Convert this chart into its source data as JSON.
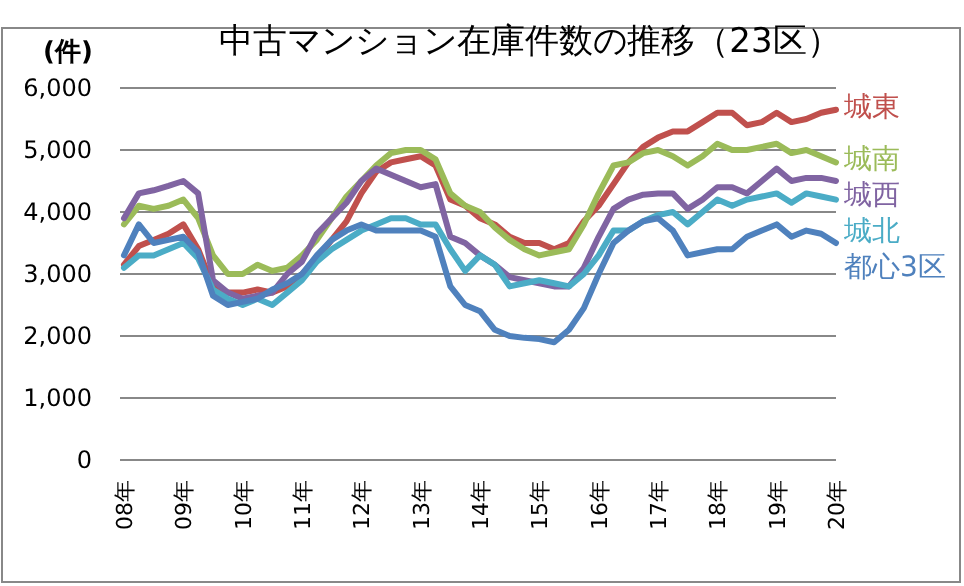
{
  "chart_data": {
    "type": "line",
    "title": "中古マンション在庫件数の推移（23区）",
    "ylabel": "(件)",
    "categories": [
      "08年",
      null,
      null,
      null,
      "09年",
      null,
      null,
      null,
      "10年",
      null,
      null,
      null,
      "11年",
      null,
      null,
      null,
      "12年",
      null,
      null,
      null,
      "13年",
      null,
      null,
      null,
      "14年",
      null,
      null,
      null,
      "15年",
      null,
      null,
      null,
      "16年",
      null,
      null,
      null,
      "17年",
      null,
      null,
      null,
      "18年",
      null,
      null,
      null,
      "19年",
      null,
      null,
      null,
      "20年"
    ],
    "series": [
      {
        "name": "城東",
        "color": "#c0504d",
        "values": [
          3150,
          3450,
          3550,
          3650,
          3800,
          3400,
          2800,
          2700,
          2700,
          2750,
          2700,
          2800,
          3000,
          3250,
          3550,
          3850,
          4300,
          4650,
          4800,
          4850,
          4900,
          4750,
          4200,
          4100,
          3900,
          3800,
          3600,
          3500,
          3500,
          3400,
          3500,
          3850,
          4100,
          4450,
          4800,
          5050,
          5200,
          5300,
          5300,
          5450,
          5600,
          5600,
          5400,
          5450,
          5600,
          5450,
          5500,
          5600,
          5650
        ]
      },
      {
        "name": "城南",
        "color": "#9bbb59",
        "values": [
          3800,
          4100,
          4050,
          4100,
          4200,
          3900,
          3300,
          3000,
          3000,
          3150,
          3050,
          3100,
          3300,
          3550,
          3900,
          4250,
          4500,
          4750,
          4950,
          5000,
          5000,
          4850,
          4300,
          4100,
          4000,
          3750,
          3550,
          3400,
          3300,
          3350,
          3400,
          3800,
          4300,
          4750,
          4800,
          4950,
          5000,
          4900,
          4750,
          4900,
          5100,
          5000,
          5000,
          5050,
          5100,
          4950,
          5000,
          4900,
          4800
        ]
      },
      {
        "name": "城西",
        "color": "#8064a2",
        "values": [
          3900,
          4300,
          4350,
          4420,
          4500,
          4300,
          2900,
          2700,
          2600,
          2650,
          2700,
          3000,
          3200,
          3650,
          3900,
          4150,
          4500,
          4700,
          4600,
          4500,
          4400,
          4450,
          3600,
          3500,
          3300,
          3150,
          2950,
          2900,
          2850,
          2800,
          2800,
          3100,
          3600,
          4050,
          4200,
          4280,
          4300,
          4300,
          4050,
          4200,
          4400,
          4400,
          4300,
          4500,
          4700,
          4500,
          4550,
          4550,
          4500
        ]
      },
      {
        "name": "城北",
        "color": "#4bacc6",
        "values": [
          3100,
          3300,
          3300,
          3400,
          3500,
          3250,
          2750,
          2600,
          2500,
          2600,
          2500,
          2700,
          2900,
          3200,
          3400,
          3550,
          3700,
          3800,
          3900,
          3900,
          3800,
          3800,
          3400,
          3050,
          3300,
          3150,
          2800,
          2850,
          2900,
          2850,
          2800,
          3000,
          3300,
          3700,
          3700,
          3850,
          3950,
          4000,
          3800,
          4000,
          4200,
          4100,
          4200,
          4250,
          4300,
          4150,
          4300,
          4250,
          4200
        ]
      },
      {
        "name": "都心3区",
        "color": "#4f81bd",
        "values": [
          3300,
          3800,
          3500,
          3550,
          3600,
          3350,
          2650,
          2500,
          2550,
          2600,
          2750,
          2850,
          3000,
          3300,
          3550,
          3700,
          3800,
          3700,
          3700,
          3700,
          3700,
          3600,
          2800,
          2500,
          2400,
          2100,
          2000,
          1970,
          1950,
          1900,
          2100,
          2450,
          3000,
          3500,
          3700,
          3850,
          3900,
          3700,
          3300,
          3350,
          3400,
          3400,
          3600,
          3700,
          3800,
          3600,
          3700,
          3650,
          3500
        ]
      }
    ],
    "ylim": [
      0,
      6000
    ],
    "yticks": [
      {
        "value": 0,
        "label": "0"
      },
      {
        "value": 1000,
        "label": "1,000"
      },
      {
        "value": 2000,
        "label": "2,000"
      },
      {
        "value": 3000,
        "label": "3,000"
      },
      {
        "value": 4000,
        "label": "4,000"
      },
      {
        "value": 5000,
        "label": "5,000"
      },
      {
        "value": 6000,
        "label": "6,000"
      }
    ],
    "grid": "y",
    "legend": false,
    "marker": "none",
    "line_style": "solid"
  }
}
